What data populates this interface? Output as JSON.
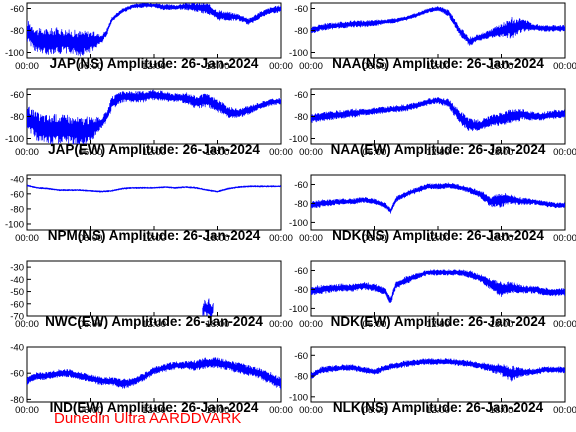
{
  "chart_data": [
    {
      "type": "line",
      "title": "JAP(NS) Amplitude: 26-Jan-2024",
      "xticks": [
        "00:00",
        "06:00",
        "12:00",
        "18:00",
        "00:00"
      ],
      "yticks": [
        -100,
        -80,
        -60
      ],
      "ylim": [
        -105,
        -55
      ],
      "xlim": [
        0,
        24
      ],
      "series": [
        {
          "color": "#0000ff",
          "x": [
            0,
            1,
            2,
            3,
            4,
            5,
            6,
            7,
            7.5,
            8,
            9,
            10,
            11,
            12,
            13,
            14,
            15,
            16,
            17,
            18,
            19,
            20,
            21,
            22,
            23,
            24
          ],
          "y": [
            -80,
            -90,
            -90,
            -89,
            -90,
            -92,
            -90,
            -88,
            -82,
            -70,
            -62,
            -58,
            -57,
            -57,
            -59,
            -59,
            -58,
            -59,
            -60,
            -66,
            -67,
            -68,
            -72,
            -66,
            -62,
            -60
          ],
          "band": [
            10,
            12,
            12,
            12,
            11,
            12,
            10,
            4,
            3,
            2,
            2,
            2,
            2,
            2,
            3,
            2,
            3,
            4,
            5,
            5,
            4,
            3,
            3,
            3,
            3,
            3
          ]
        }
      ]
    },
    {
      "type": "line",
      "title": "NAA(NS) Amplitude: 26-Jan-2024",
      "xticks": [
        "00:00",
        "06:00",
        "12:00",
        "18:00",
        "00:00"
      ],
      "yticks": [
        -100,
        -80,
        -60
      ],
      "ylim": [
        -105,
        -55
      ],
      "xlim": [
        0,
        24
      ],
      "series": [
        {
          "color": "#0000ff",
          "x": [
            0,
            1,
            2,
            3,
            4,
            5,
            6,
            7,
            8,
            9,
            10,
            11,
            12,
            13,
            14,
            15,
            16,
            17,
            18,
            19,
            20,
            21,
            22,
            23,
            24
          ],
          "y": [
            -80,
            -77,
            -76,
            -75,
            -74,
            -74,
            -73,
            -72,
            -71,
            -69,
            -66,
            -62,
            -60,
            -64,
            -80,
            -90,
            -86,
            -83,
            -80,
            -78,
            -75,
            -77,
            -78,
            -78,
            -78
          ],
          "band": [
            3,
            3,
            3,
            3,
            3,
            3,
            3,
            2,
            2,
            2,
            2,
            2,
            2,
            3,
            4,
            4,
            3,
            4,
            6,
            10,
            6,
            3,
            3,
            3,
            3
          ]
        }
      ]
    },
    {
      "type": "line",
      "title": "JAP(EW) Amplitude: 26-Jan-2024",
      "xticks": [
        "00:00",
        "06:00",
        "12:00",
        "18:00",
        "00:00"
      ],
      "yticks": [
        -100,
        -80,
        -60
      ],
      "ylim": [
        -105,
        -55
      ],
      "xlim": [
        0,
        24
      ],
      "series": [
        {
          "color": "#0000ff",
          "x": [
            0,
            1,
            2,
            3,
            4,
            5,
            6,
            7,
            7.5,
            8,
            9,
            10,
            11,
            12,
            13,
            14,
            15,
            16,
            17,
            18,
            19,
            20,
            21,
            22,
            23,
            24
          ],
          "y": [
            -80,
            -90,
            -92,
            -91,
            -92,
            -94,
            -92,
            -86,
            -80,
            -68,
            -62,
            -62,
            -62,
            -60,
            -62,
            -63,
            -63,
            -67,
            -65,
            -70,
            -76,
            -77,
            -74,
            -70,
            -67,
            -66
          ],
          "band": [
            10,
            14,
            14,
            14,
            13,
            14,
            12,
            5,
            5,
            6,
            5,
            5,
            5,
            5,
            5,
            4,
            5,
            6,
            6,
            6,
            5,
            4,
            4,
            3,
            3,
            3
          ]
        }
      ]
    },
    {
      "type": "line",
      "title": "NAA(EW) Amplitude: 26-Jan-2024",
      "xticks": [
        "00:00",
        "06:00",
        "12:00",
        "18:00",
        "00:00"
      ],
      "yticks": [
        -100,
        -80,
        -60
      ],
      "ylim": [
        -105,
        -55
      ],
      "xlim": [
        0,
        24
      ],
      "series": [
        {
          "color": "#0000ff",
          "x": [
            0,
            1,
            2,
            3,
            4,
            5,
            6,
            7,
            8,
            9,
            10,
            11,
            12,
            13,
            14,
            15,
            16,
            17,
            18,
            19,
            20,
            21,
            22,
            23,
            24
          ],
          "y": [
            -82,
            -80,
            -79,
            -78,
            -77,
            -76,
            -75,
            -74,
            -73,
            -72,
            -70,
            -67,
            -65,
            -68,
            -80,
            -88,
            -88,
            -84,
            -82,
            -80,
            -78,
            -80,
            -80,
            -78,
            -78
          ],
          "band": [
            4,
            4,
            4,
            4,
            4,
            3,
            3,
            3,
            3,
            3,
            3,
            3,
            3,
            4,
            6,
            6,
            5,
            5,
            6,
            7,
            5,
            4,
            4,
            4,
            4
          ]
        }
      ]
    },
    {
      "type": "line",
      "title": "NPM(NS) Amplitude: 26-Jan-2024",
      "xticks": [
        "00:00",
        "06:00",
        "12:00",
        "18:00",
        "00:00"
      ],
      "yticks": [
        -100,
        -80,
        -60,
        -40
      ],
      "ylim": [
        -108,
        -35
      ],
      "xlim": [
        0,
        24
      ],
      "series": [
        {
          "color": "#0000ff",
          "x": [
            0,
            1,
            2,
            3,
            4,
            5,
            6,
            7,
            8,
            9,
            10,
            11,
            12,
            13,
            14,
            15,
            16,
            17,
            18,
            19,
            20,
            21,
            22,
            23,
            24
          ],
          "y": [
            -49,
            -52,
            -53,
            -55,
            -55,
            -55,
            -56,
            -57,
            -56,
            -53,
            -52,
            -52,
            -52,
            -51,
            -52,
            -51,
            -52,
            -55,
            -57,
            -53,
            -51,
            -50,
            -50,
            -50,
            -50
          ],
          "band": [
            1,
            1,
            1,
            1,
            1,
            1,
            1,
            1,
            1,
            1,
            1,
            1,
            1,
            1,
            1,
            1,
            1,
            1,
            1,
            1,
            1,
            1,
            1,
            1,
            1
          ]
        }
      ]
    },
    {
      "type": "line",
      "title": "NDK(NS) Amplitude: 26-Jan-2024",
      "xticks": [
        "00:00",
        "06:00",
        "12:00",
        "18:00",
        "00:00"
      ],
      "yticks": [
        -100,
        -80,
        -60
      ],
      "ylim": [
        -108,
        -50
      ],
      "xlim": [
        0,
        24
      ],
      "series": [
        {
          "color": "#0000ff",
          "x": [
            0,
            1,
            2,
            3,
            4,
            5,
            6,
            7,
            7.5,
            8,
            9,
            10,
            11,
            12,
            13,
            14,
            15,
            16,
            17,
            18,
            19,
            20,
            21,
            22,
            23,
            24
          ],
          "y": [
            -82,
            -80,
            -79,
            -78,
            -78,
            -76,
            -78,
            -82,
            -88,
            -76,
            -70,
            -66,
            -62,
            -62,
            -61,
            -63,
            -66,
            -70,
            -78,
            -76,
            -76,
            -78,
            -78,
            -80,
            -82,
            -82
          ],
          "band": [
            4,
            4,
            3,
            3,
            3,
            3,
            3,
            3,
            3,
            3,
            3,
            3,
            3,
            3,
            3,
            3,
            3,
            4,
            6,
            8,
            5,
            4,
            3,
            3,
            3,
            3
          ]
        }
      ]
    },
    {
      "type": "line",
      "title": "NWC(EW) Amplitude: 26-Jan-2024",
      "xticks": [
        "00:00",
        "06:00",
        "12:00",
        "18:00",
        "00:00"
      ],
      "yticks": [
        -70,
        -60,
        -50,
        -40,
        -30
      ],
      "ylim": [
        -70,
        -25
      ],
      "xlim": [
        0,
        24
      ],
      "series": [
        {
          "color": "#0000ff",
          "x": [
            16.6,
            16.8,
            17.0,
            17.2,
            17.4,
            17.6
          ],
          "y": [
            -66,
            -63,
            -65,
            -62,
            -66,
            -64
          ],
          "band": [
            5,
            6,
            6,
            7,
            5,
            5
          ]
        }
      ]
    },
    {
      "type": "line",
      "title": "NDK(EW) Amplitude: 26-Jan-2024",
      "xticks": [
        "00:00",
        "06:00",
        "12:00",
        "18:00",
        "00:00"
      ],
      "yticks": [
        -100,
        -80,
        -60
      ],
      "ylim": [
        -108,
        -50
      ],
      "xlim": [
        0,
        24
      ],
      "series": [
        {
          "color": "#0000ff",
          "x": [
            0,
            1,
            2,
            3,
            4,
            5,
            6,
            7,
            7.5,
            8,
            9,
            10,
            11,
            12,
            13,
            14,
            15,
            16,
            17,
            18,
            19,
            20,
            21,
            22,
            23,
            24
          ],
          "y": [
            -82,
            -80,
            -79,
            -78,
            -78,
            -76,
            -78,
            -82,
            -92,
            -76,
            -70,
            -66,
            -62,
            -62,
            -62,
            -62,
            -64,
            -68,
            -74,
            -80,
            -78,
            -80,
            -80,
            -82,
            -83,
            -83
          ],
          "band": [
            5,
            5,
            4,
            4,
            4,
            4,
            4,
            4,
            4,
            4,
            4,
            3,
            3,
            3,
            3,
            3,
            4,
            4,
            6,
            8,
            6,
            4,
            4,
            4,
            4,
            4
          ]
        }
      ]
    },
    {
      "type": "line",
      "title": "IND(EW) Amplitude: 26-Jan-2024",
      "xticks": [
        "00:00",
        "06:00",
        "12:00",
        "18:00",
        "00:00"
      ],
      "yticks": [
        -80,
        -60,
        -40
      ],
      "ylim": [
        -82,
        -40
      ],
      "xlim": [
        0,
        24
      ],
      "series": [
        {
          "color": "#0000ff",
          "x": [
            0,
            1,
            2,
            3,
            4,
            5,
            6,
            7,
            8,
            9,
            10,
            11,
            12,
            13,
            14,
            15,
            16,
            17,
            18,
            19,
            20,
            21,
            22,
            23,
            24
          ],
          "y": [
            -66,
            -62,
            -62,
            -60,
            -60,
            -62,
            -64,
            -66,
            -66,
            -68,
            -67,
            -63,
            -58,
            -56,
            -54,
            -54,
            -54,
            -52,
            -52,
            -54,
            -56,
            -58,
            -60,
            -64,
            -68
          ],
          "band": [
            3,
            3,
            3,
            3,
            3,
            3,
            3,
            3,
            3,
            4,
            3,
            3,
            3,
            3,
            3,
            3,
            4,
            4,
            4,
            4,
            4,
            4,
            4,
            5,
            5
          ]
        }
      ]
    },
    {
      "type": "line",
      "title": "NLK(NS) Amplitude: 26-Jan-2024",
      "xticks": [
        "00:00",
        "06:00",
        "12:00",
        "18:00",
        "00:00"
      ],
      "yticks": [
        -100,
        -80,
        -60
      ],
      "ylim": [
        -105,
        -52
      ],
      "xlim": [
        0,
        24
      ],
      "series": [
        {
          "color": "#0000ff",
          "x": [
            0,
            1,
            2,
            3,
            4,
            5,
            6,
            7,
            8,
            9,
            10,
            11,
            12,
            13,
            14,
            15,
            16,
            17,
            18,
            19,
            20,
            21,
            22,
            23,
            24
          ],
          "y": [
            -80,
            -74,
            -73,
            -72,
            -72,
            -74,
            -76,
            -72,
            -70,
            -68,
            -67,
            -66,
            -66,
            -66,
            -67,
            -68,
            -70,
            -72,
            -74,
            -78,
            -76,
            -76,
            -74,
            -74,
            -74
          ],
          "band": [
            3,
            3,
            3,
            3,
            3,
            3,
            3,
            3,
            3,
            3,
            3,
            3,
            3,
            3,
            3,
            3,
            3,
            4,
            6,
            8,
            4,
            3,
            3,
            3,
            3
          ]
        }
      ]
    }
  ],
  "credit": {
    "text": "Dunedin Ultra AARDDVARK",
    "color": "#ff0000"
  }
}
